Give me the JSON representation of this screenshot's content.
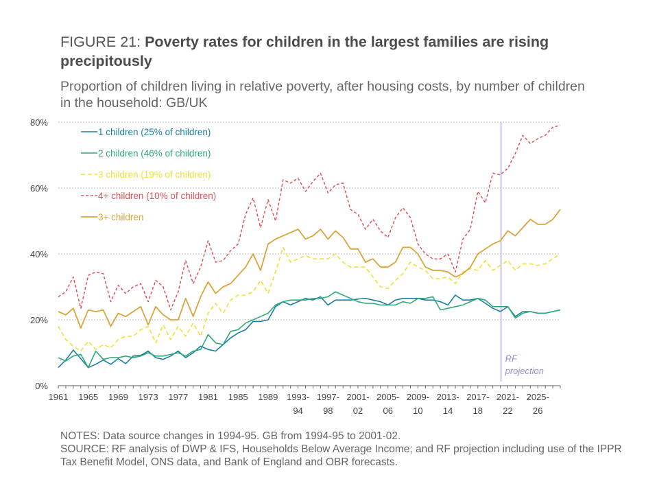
{
  "header": {
    "figure_label": "FIGURE 21: ",
    "title": "Poverty rates for children in the largest families are rising precipitously",
    "subtitle": "Proportion of children living in relative poverty, after housing costs, by number of children in the household: GB/UK"
  },
  "notes": {
    "line1": "NOTES: Data source changes in 1994-95. GB from 1994-95 to 2001-02.",
    "line2": "SOURCE: RF analysis of DWP & IFS, Households Below Average Income; and RF projection including use of the IPPR Tax Benefit Model, ONS data, and Bank of England and OBR forecasts."
  },
  "chart_data": {
    "type": "line",
    "y_ticks": [
      "0%",
      "20%",
      "40%",
      "60%",
      "80%"
    ],
    "ylim": [
      0,
      80
    ],
    "grid": "horizontal dotted",
    "legend_position": "top-left",
    "x_tick_labels": [
      {
        "i": 0,
        "l1": "1961",
        "l2": ""
      },
      {
        "i": 4,
        "l1": "1965",
        "l2": ""
      },
      {
        "i": 8,
        "l1": "1969",
        "l2": ""
      },
      {
        "i": 12,
        "l1": "1973",
        "l2": ""
      },
      {
        "i": 16,
        "l1": "1977",
        "l2": ""
      },
      {
        "i": 20,
        "l1": "1981",
        "l2": ""
      },
      {
        "i": 24,
        "l1": "1985",
        "l2": ""
      },
      {
        "i": 28,
        "l1": "1989",
        "l2": ""
      },
      {
        "i": 32,
        "l1": "1993-",
        "l2": "94"
      },
      {
        "i": 36,
        "l1": "1997-",
        "l2": "98"
      },
      {
        "i": 40,
        "l1": "2001-",
        "l2": "02"
      },
      {
        "i": 44,
        "l1": "2005-",
        "l2": "06"
      },
      {
        "i": 48,
        "l1": "2009-",
        "l2": "10"
      },
      {
        "i": 52,
        "l1": "2013-",
        "l2": "14"
      },
      {
        "i": 56,
        "l1": "2017-",
        "l2": "18"
      },
      {
        "i": 60,
        "l1": "2021-",
        "l2": "22"
      },
      {
        "i": 64,
        "l1": "2025-",
        "l2": "26"
      }
    ],
    "projection_label": [
      "RF",
      "projection"
    ],
    "projection_start_index": 59,
    "series": [
      {
        "name": "1 children (25% of children)",
        "color": "#1a7fa3",
        "dash": "",
        "width": 1.6,
        "values": [
          5.5,
          7.8,
          10.8,
          8.2,
          5.5,
          6.5,
          7.8,
          6.5,
          8.2,
          6.7,
          9,
          9.2,
          10.5,
          8.5,
          8,
          9,
          10.5,
          8.5,
          10,
          12,
          11,
          10.5,
          12.5,
          14.5,
          16,
          17,
          19.5,
          19.5,
          20,
          24,
          25.5,
          24.5,
          25.5,
          26.5,
          26,
          27,
          24.5,
          26,
          26,
          26,
          26.3,
          26.5,
          26,
          25.5,
          24.5,
          26,
          26.5,
          26.5,
          26.5,
          26,
          26,
          25.5,
          24.5,
          27.5,
          26,
          26,
          26.5,
          25,
          23.5,
          22.5,
          24,
          21,
          22.5,
          22.5,
          22,
          22,
          22.5,
          23
        ]
      },
      {
        "name": "2 children (46% of children)",
        "color": "#2eaa74",
        "dash": "",
        "width": 1.6,
        "values": [
          8.5,
          7.5,
          9,
          9.5,
          5.5,
          10.5,
          8,
          8.5,
          8.5,
          9,
          8.5,
          9,
          10,
          9,
          9,
          9.5,
          10,
          9,
          10.5,
          11,
          15.5,
          13,
          12.5,
          16.5,
          17,
          19,
          20,
          21,
          22,
          24.5,
          25.5,
          26,
          26,
          26,
          26.5,
          26.5,
          27,
          28.5,
          27.5,
          26.5,
          25.5,
          25,
          25,
          24.5,
          24.5,
          24.5,
          25.5,
          25,
          26.5,
          26.5,
          27,
          23,
          23.5,
          24,
          24.5,
          25.5,
          26.5,
          26,
          24,
          24,
          24,
          20.5,
          22,
          22.5,
          22,
          22,
          22.5,
          23
        ]
      },
      {
        "name": "3 children (19% of children)",
        "color": "#ede13a",
        "dash": "6,4",
        "width": 1.6,
        "values": [
          18,
          14,
          12,
          10.5,
          13.5,
          11,
          12.5,
          11.5,
          14,
          15,
          15,
          17,
          18,
          13,
          18.5,
          14,
          18,
          15,
          19,
          15,
          22,
          25,
          22,
          26,
          27.5,
          27.5,
          28.5,
          32,
          28,
          34.5,
          42,
          37.5,
          38.5,
          39.5,
          38.5,
          38.5,
          38.5,
          40,
          37.5,
          36,
          36,
          36,
          33,
          30,
          29.5,
          32,
          34,
          37.5,
          36,
          35,
          32.5,
          32.5,
          33,
          31,
          34.5,
          35.5,
          35,
          38,
          35,
          36.5,
          38,
          35,
          37,
          37,
          36.5,
          37,
          38.5,
          40
        ]
      },
      {
        "name": "4+ children (10% of children)",
        "color": "#e0505a",
        "dash": "4,3",
        "width": 1.5,
        "values": [
          27,
          28.5,
          33,
          23.5,
          33.5,
          34.5,
          34,
          25.5,
          30.5,
          28,
          30,
          31,
          25.5,
          32,
          30,
          23,
          28.5,
          38,
          31,
          36,
          44,
          37.5,
          38,
          41,
          43,
          52,
          57,
          48,
          56.5,
          50,
          62.5,
          61.5,
          63,
          59,
          62,
          64.5,
          58.5,
          61,
          61.5,
          53.5,
          52,
          47.5,
          50.5,
          47,
          45,
          51,
          54,
          51,
          43,
          40,
          38.5,
          38.5,
          40,
          34.5,
          44.5,
          47.5,
          59,
          55.5,
          64.5,
          64,
          66,
          70.5,
          76,
          73.5,
          75,
          76,
          78.5,
          79
        ]
      },
      {
        "name": "3+ children",
        "color": "#d9a43a",
        "dash": "",
        "width": 1.8,
        "values": [
          22.5,
          21.5,
          23.5,
          17.5,
          23,
          22.5,
          23,
          18,
          22,
          21,
          22.5,
          24,
          18.5,
          24,
          21.5,
          20,
          20,
          26.5,
          21,
          27,
          31.5,
          28,
          30,
          31,
          33.5,
          36,
          40,
          35,
          43,
          44.5,
          45.5,
          46.5,
          47.5,
          44.5,
          45.5,
          47.5,
          44.5,
          47,
          45,
          41.5,
          41.5,
          37.5,
          38.5,
          36,
          36,
          37.5,
          42,
          42,
          40,
          36,
          35,
          35,
          34.5,
          33,
          34,
          36,
          40,
          41.5,
          43,
          44,
          47,
          45.5,
          48,
          50.5,
          49,
          49,
          50.5,
          53.5
        ]
      }
    ]
  }
}
